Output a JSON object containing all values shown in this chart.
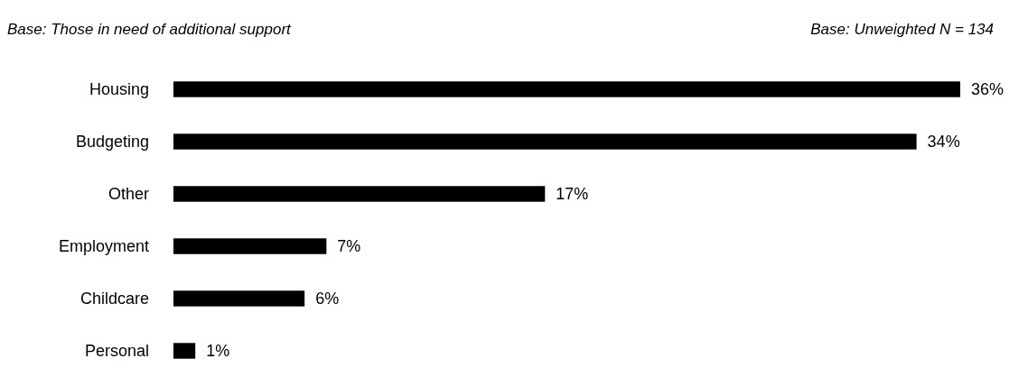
{
  "chart_data": {
    "type": "bar",
    "orientation": "horizontal",
    "title": "Base: Those in need of additional support",
    "annotations": [
      "Base: Unweighted N = 134"
    ],
    "categories": [
      "Housing",
      "Budgeting",
      "Other",
      "Employment",
      "Childcare",
      "Personal"
    ],
    "values": [
      36,
      34,
      17,
      7,
      6,
      1
    ],
    "value_labels": [
      "36%",
      "34%",
      "17%",
      "7%",
      "6%",
      "1%"
    ],
    "color": "#000000"
  }
}
